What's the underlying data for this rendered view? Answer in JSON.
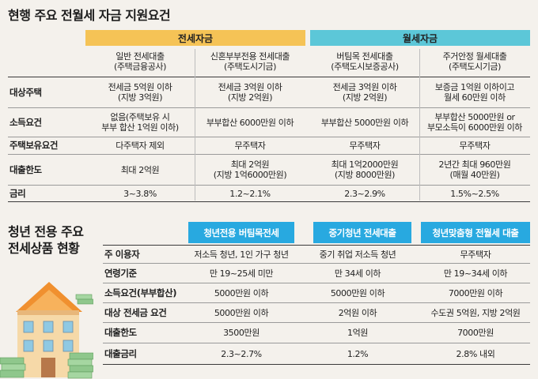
{
  "top": {
    "title": "현행 주요 전월세 자금 지원요건",
    "group_jeonse": "전세자금",
    "group_wolse": "월세자금",
    "columns": [
      {
        "l1": "일반 전세대출",
        "l2": "(주택금융공사)"
      },
      {
        "l1": "신혼부부전용 전세대출",
        "l2": "(주택도시기금)"
      },
      {
        "l1": "버팀목 전세대출",
        "l2": "(주택도시보증공사)"
      },
      {
        "l1": "주거안정 월세대출",
        "l2": "(주택도시기금)"
      }
    ],
    "rows": [
      {
        "label": "대상주택",
        "cells": [
          [
            "전세금 5억원 이하",
            "(지방 3억원)"
          ],
          [
            "전세금 3억원 이하",
            "(지방 2억원)"
          ],
          [
            "전세금 3억원 이하",
            "(지방 2억원)"
          ],
          [
            "보증금 1억원 이하이고",
            "월세 60만원 이하"
          ]
        ]
      },
      {
        "label": "소득요건",
        "cells": [
          [
            "없음(주택보유 시",
            "부부 합산 1억원 이하)"
          ],
          [
            "부부합산 6000만원 이하"
          ],
          [
            "부부합산 5000만원 이하"
          ],
          [
            "부부합산 5000만원 or",
            "부모소득이 6000만원 이하"
          ]
        ]
      },
      {
        "label": "주택보유요건",
        "cells": [
          [
            "다주택자 제외"
          ],
          [
            "무주택자"
          ],
          [
            "무주택자"
          ],
          [
            "무주택자"
          ]
        ]
      },
      {
        "label": "대출한도",
        "cells": [
          [
            "최대 2억원"
          ],
          [
            "최대 2억원",
            "(지방 1억6000만원)"
          ],
          [
            "최대 1억2000만원",
            "(지방 8000만원)"
          ],
          [
            "2년간 최대 960만원",
            "(매월 40만원)"
          ]
        ]
      },
      {
        "label": "금리",
        "cells": [
          [
            "3~3.8%"
          ],
          [
            "1.2~2.1%"
          ],
          [
            "2.3~2.9%"
          ],
          [
            "1.5%~2.5%"
          ]
        ]
      }
    ]
  },
  "bottom": {
    "title_l1": "청년 전용 주요",
    "title_l2": "전세상품 현황",
    "columns": [
      "청년전용 버팀목전세",
      "중기청년 전세대출",
      "청년맞춤형 전월세 대출"
    ],
    "rows": [
      {
        "label": "주 이용자",
        "cells": [
          "저소득 청년, 1인 가구 청년",
          "중기 취업 저소득 청년",
          "무주택자"
        ]
      },
      {
        "label": "연령기준",
        "cells": [
          "만 19~25세 미만",
          "만 34세 이하",
          "만 19~34세 이하"
        ]
      },
      {
        "label": "소득요건(부부합산)",
        "cells": [
          "5000만원 이하",
          "5000만원 이하",
          "7000만원 이하"
        ]
      },
      {
        "label": "대상 전세금 요건",
        "cells": [
          "5000만원 이하",
          "2억원 이하",
          "수도권 5억원, 지방 2억원"
        ]
      },
      {
        "label": "대출한도",
        "cells": [
          "3500만원",
          "1억원",
          "7000만원"
        ]
      },
      {
        "label": "대출금리",
        "cells": [
          "2.3~2.7%",
          "1.2%",
          "2.8% 내외"
        ]
      }
    ]
  },
  "colors": {
    "jeonse_header": "#f5c356",
    "wolse_header": "#5cc7d8",
    "youth_header": "#28a9e0"
  }
}
